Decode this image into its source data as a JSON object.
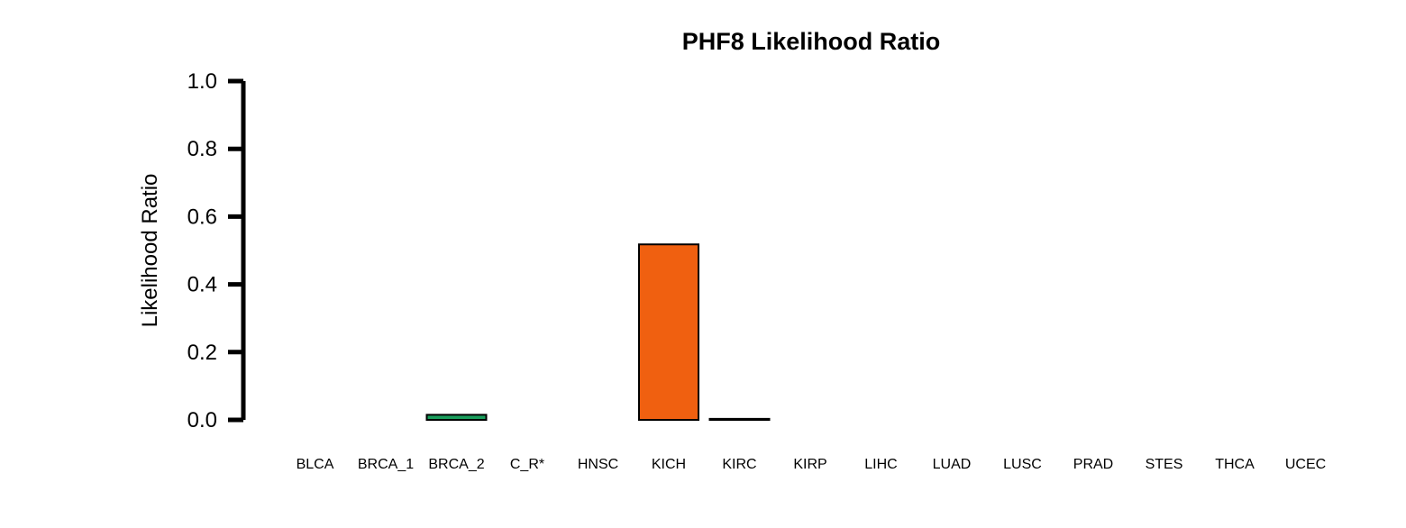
{
  "chart_data": {
    "type": "bar",
    "title": "PHF8 Likelihood Ratio",
    "xlabel": "",
    "ylabel": "Likelihood Ratio",
    "ylim": [
      0,
      1
    ],
    "yticks": [
      "0.0",
      "0.2",
      "0.4",
      "0.6",
      "0.8",
      "1.0"
    ],
    "categories": [
      "BLCA",
      "BRCA_1",
      "BRCA_2",
      "C_R*",
      "HNSC",
      "KICH",
      "KIRC",
      "KIRP",
      "LIHC",
      "LUAD",
      "LUSC",
      "PRAD",
      "STES",
      "THCA",
      "UCEC"
    ],
    "values": [
      0.0,
      0.0,
      0.015,
      0.0,
      0.0,
      0.518,
      0.003,
      0.0,
      0.0,
      0.0,
      0.0,
      0.0,
      0.0,
      0.0,
      0.0
    ],
    "bar_colors": [
      "#000000",
      "#000000",
      "#1a9e5c",
      "#000000",
      "#000000",
      "#f06010",
      "#000000",
      "#000000",
      "#000000",
      "#000000",
      "#000000",
      "#000000",
      "#000000",
      "#000000",
      "#000000"
    ],
    "grid": false
  }
}
